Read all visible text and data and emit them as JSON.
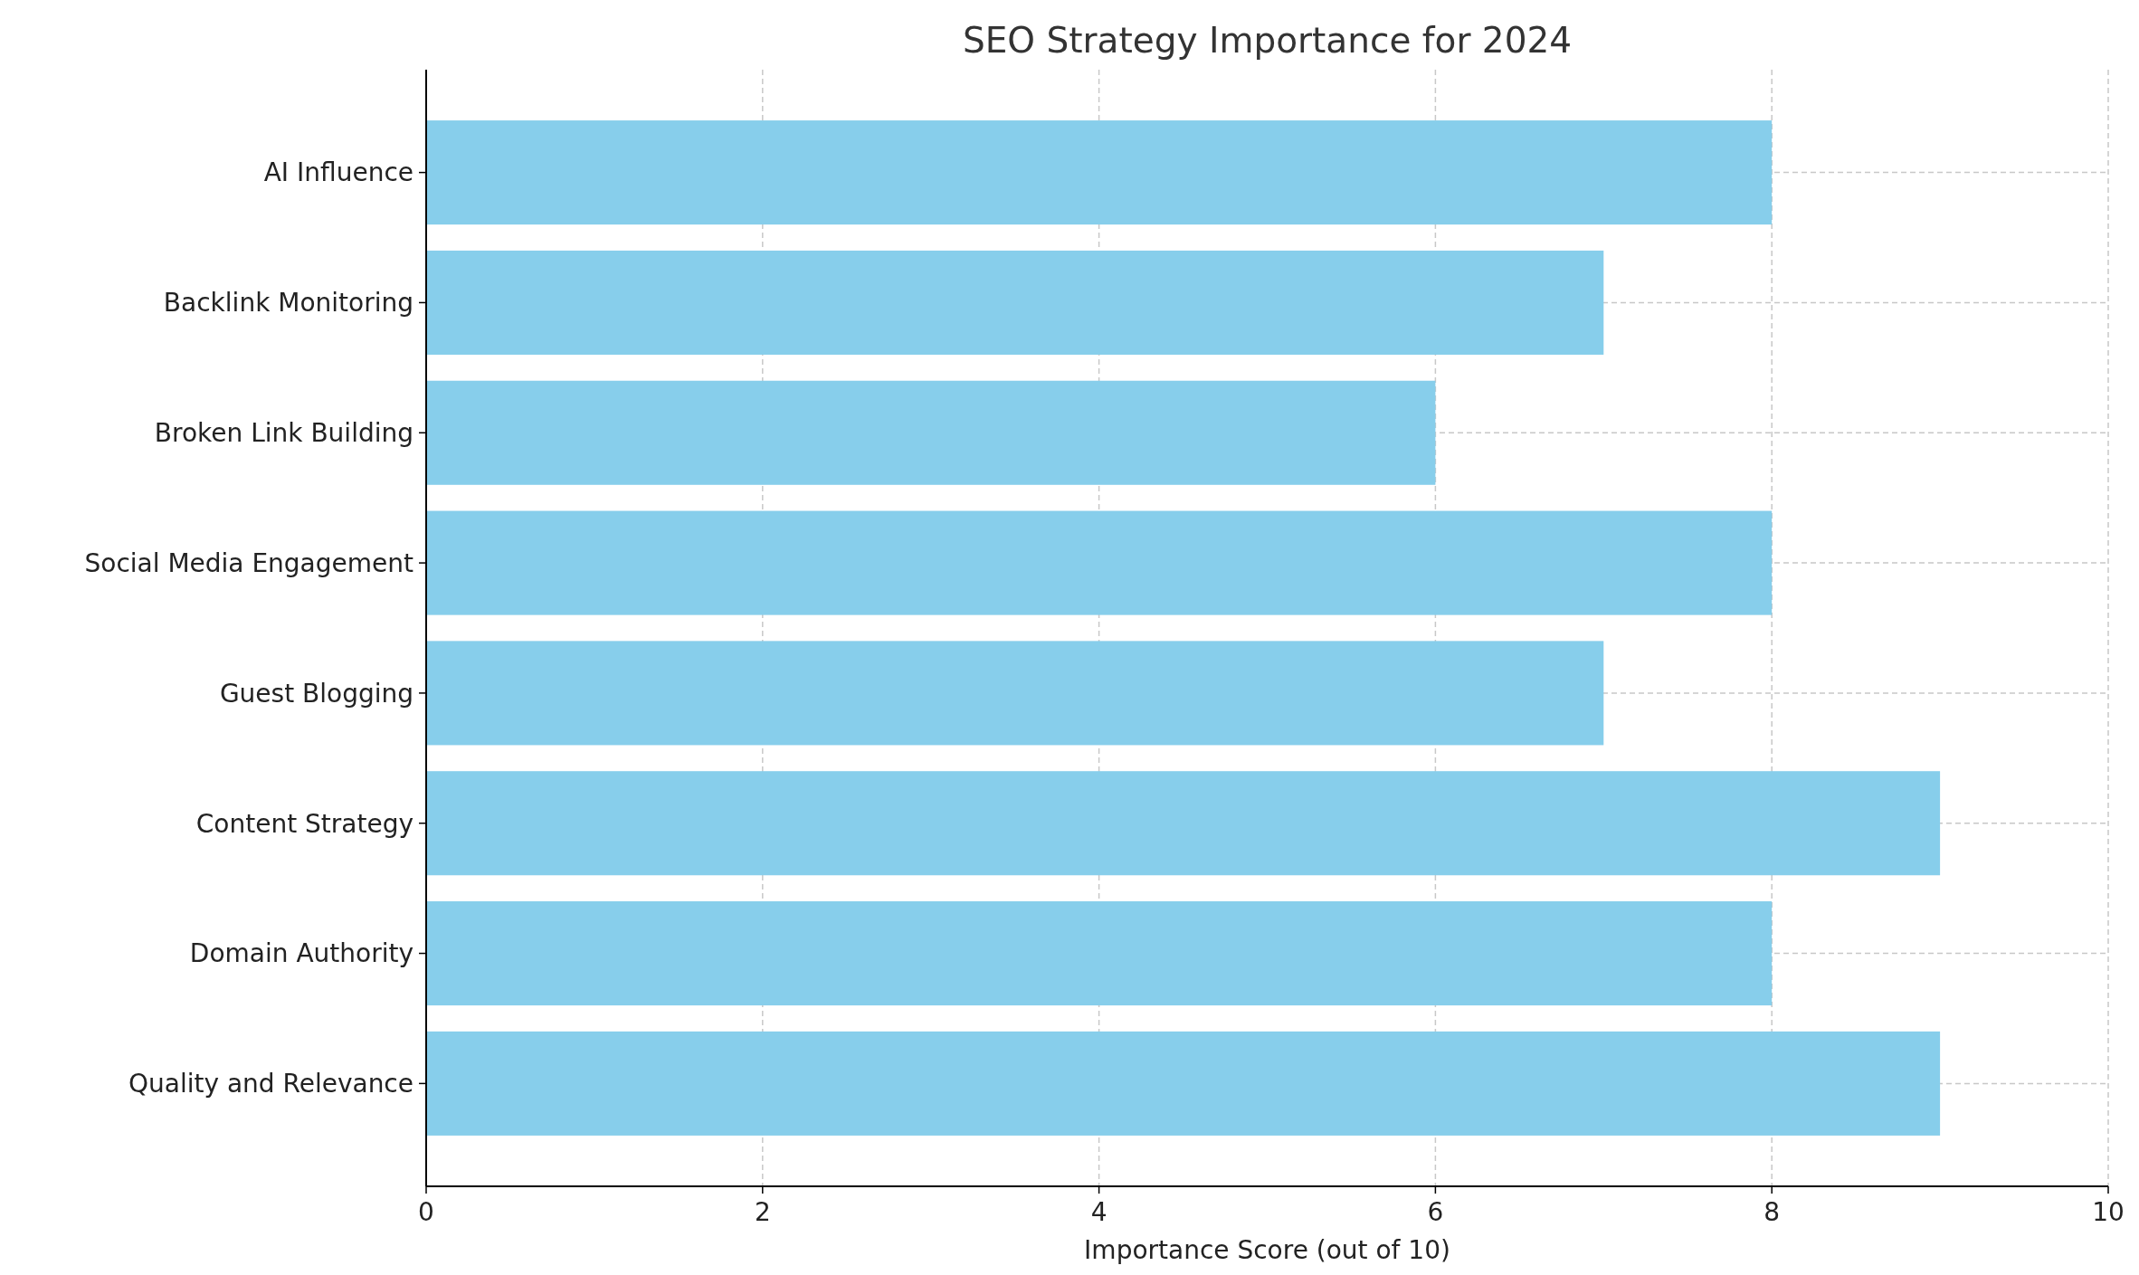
{
  "chart_data": {
    "type": "bar",
    "orientation": "horizontal",
    "title": "SEO Strategy Importance for 2024",
    "xlabel": "Importance Score (out of 10)",
    "categories": [
      "AI Influence",
      "Backlink Monitoring",
      "Broken Link Building",
      "Social Media Engagement",
      "Guest Blogging",
      "Content Strategy",
      "Domain Authority",
      "Quality and Relevance"
    ],
    "values": [
      8,
      7,
      6,
      8,
      7,
      9,
      8,
      9
    ],
    "color": "#87ceeb",
    "xlim": [
      0,
      10
    ],
    "xticks": [
      0,
      2,
      4,
      6,
      8,
      10
    ],
    "grid": true
  }
}
